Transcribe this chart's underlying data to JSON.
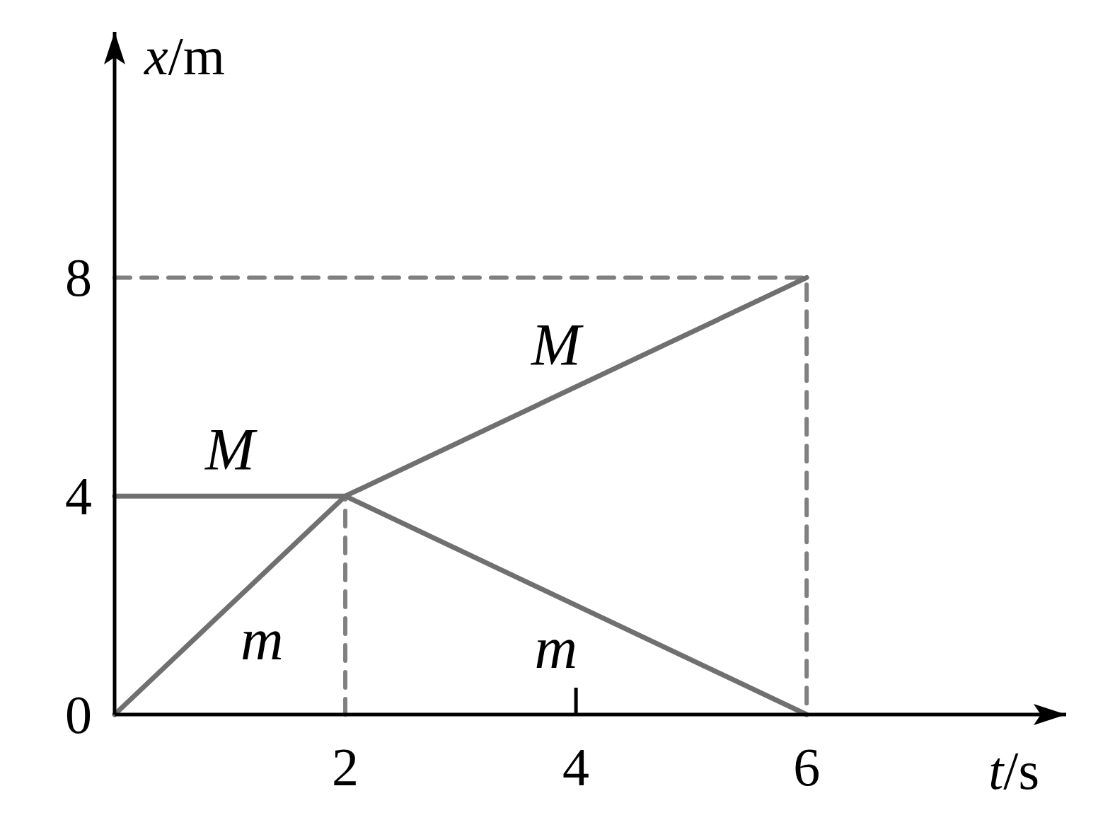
{
  "chart_data": {
    "type": "line",
    "xlabel": "t/s",
    "ylabel": "x/m",
    "xlim": [
      0,
      8.25
    ],
    "xticks": [
      2,
      4,
      6
    ],
    "ylim": [
      0,
      12.5
    ],
    "yticks": [
      0,
      4,
      8
    ],
    "line_style": "solid",
    "series": [
      {
        "type": "line",
        "color": "#808080",
        "line_style": "dashed",
        "x": [
          0,
          6,
          6
        ],
        "values": [
          8,
          8,
          0
        ]
      },
      {
        "type": "line",
        "color": "#808080",
        "line_style": "dashed",
        "x": [
          2,
          2
        ],
        "values": [
          0,
          4
        ]
      },
      {
        "name": "M",
        "color": "#707070",
        "x": [
          0,
          2,
          6
        ],
        "values": [
          4,
          4,
          8
        ]
      },
      {
        "name": "m",
        "color": "#707070",
        "x": [
          0,
          2,
          6
        ],
        "values": [
          0,
          4,
          0
        ]
      }
    ]
  }
}
